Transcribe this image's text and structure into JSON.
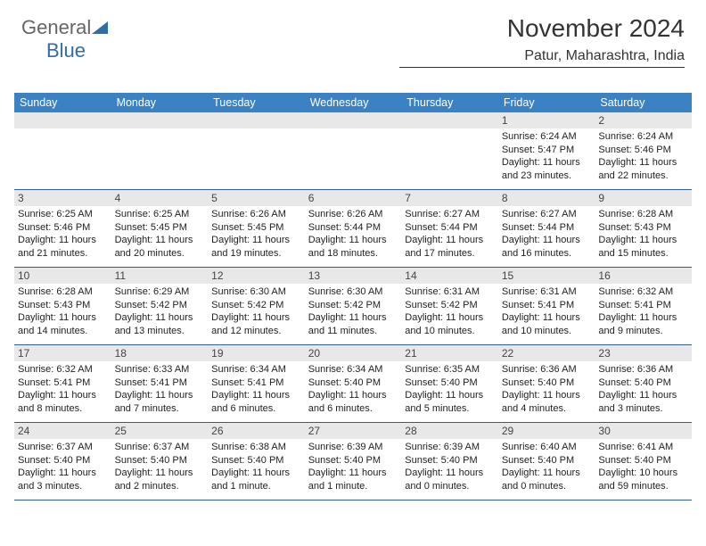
{
  "brand": {
    "part1": "General",
    "part2": "Blue"
  },
  "header": {
    "title": "November 2024",
    "location": "Patur, Maharashtra, India"
  },
  "colors": {
    "header_bg": "#3a82c4",
    "header_text": "#ffffff",
    "daynum_bg": "#e8e8e8",
    "week_border": "#2f5f8a",
    "text": "#222222",
    "logo_gray": "#666666",
    "logo_blue": "#2f6fa7"
  },
  "day_labels": [
    "Sunday",
    "Monday",
    "Tuesday",
    "Wednesday",
    "Thursday",
    "Friday",
    "Saturday"
  ],
  "weeks": [
    [
      {
        "n": "",
        "sr": "",
        "ss": "",
        "dl": ""
      },
      {
        "n": "",
        "sr": "",
        "ss": "",
        "dl": ""
      },
      {
        "n": "",
        "sr": "",
        "ss": "",
        "dl": ""
      },
      {
        "n": "",
        "sr": "",
        "ss": "",
        "dl": ""
      },
      {
        "n": "",
        "sr": "",
        "ss": "",
        "dl": ""
      },
      {
        "n": "1",
        "sr": "Sunrise: 6:24 AM",
        "ss": "Sunset: 5:47 PM",
        "dl": "Daylight: 11 hours and 23 minutes."
      },
      {
        "n": "2",
        "sr": "Sunrise: 6:24 AM",
        "ss": "Sunset: 5:46 PM",
        "dl": "Daylight: 11 hours and 22 minutes."
      }
    ],
    [
      {
        "n": "3",
        "sr": "Sunrise: 6:25 AM",
        "ss": "Sunset: 5:46 PM",
        "dl": "Daylight: 11 hours and 21 minutes."
      },
      {
        "n": "4",
        "sr": "Sunrise: 6:25 AM",
        "ss": "Sunset: 5:45 PM",
        "dl": "Daylight: 11 hours and 20 minutes."
      },
      {
        "n": "5",
        "sr": "Sunrise: 6:26 AM",
        "ss": "Sunset: 5:45 PM",
        "dl": "Daylight: 11 hours and 19 minutes."
      },
      {
        "n": "6",
        "sr": "Sunrise: 6:26 AM",
        "ss": "Sunset: 5:44 PM",
        "dl": "Daylight: 11 hours and 18 minutes."
      },
      {
        "n": "7",
        "sr": "Sunrise: 6:27 AM",
        "ss": "Sunset: 5:44 PM",
        "dl": "Daylight: 11 hours and 17 minutes."
      },
      {
        "n": "8",
        "sr": "Sunrise: 6:27 AM",
        "ss": "Sunset: 5:44 PM",
        "dl": "Daylight: 11 hours and 16 minutes."
      },
      {
        "n": "9",
        "sr": "Sunrise: 6:28 AM",
        "ss": "Sunset: 5:43 PM",
        "dl": "Daylight: 11 hours and 15 minutes."
      }
    ],
    [
      {
        "n": "10",
        "sr": "Sunrise: 6:28 AM",
        "ss": "Sunset: 5:43 PM",
        "dl": "Daylight: 11 hours and 14 minutes."
      },
      {
        "n": "11",
        "sr": "Sunrise: 6:29 AM",
        "ss": "Sunset: 5:42 PM",
        "dl": "Daylight: 11 hours and 13 minutes."
      },
      {
        "n": "12",
        "sr": "Sunrise: 6:30 AM",
        "ss": "Sunset: 5:42 PM",
        "dl": "Daylight: 11 hours and 12 minutes."
      },
      {
        "n": "13",
        "sr": "Sunrise: 6:30 AM",
        "ss": "Sunset: 5:42 PM",
        "dl": "Daylight: 11 hours and 11 minutes."
      },
      {
        "n": "14",
        "sr": "Sunrise: 6:31 AM",
        "ss": "Sunset: 5:42 PM",
        "dl": "Daylight: 11 hours and 10 minutes."
      },
      {
        "n": "15",
        "sr": "Sunrise: 6:31 AM",
        "ss": "Sunset: 5:41 PM",
        "dl": "Daylight: 11 hours and 10 minutes."
      },
      {
        "n": "16",
        "sr": "Sunrise: 6:32 AM",
        "ss": "Sunset: 5:41 PM",
        "dl": "Daylight: 11 hours and 9 minutes."
      }
    ],
    [
      {
        "n": "17",
        "sr": "Sunrise: 6:32 AM",
        "ss": "Sunset: 5:41 PM",
        "dl": "Daylight: 11 hours and 8 minutes."
      },
      {
        "n": "18",
        "sr": "Sunrise: 6:33 AM",
        "ss": "Sunset: 5:41 PM",
        "dl": "Daylight: 11 hours and 7 minutes."
      },
      {
        "n": "19",
        "sr": "Sunrise: 6:34 AM",
        "ss": "Sunset: 5:41 PM",
        "dl": "Daylight: 11 hours and 6 minutes."
      },
      {
        "n": "20",
        "sr": "Sunrise: 6:34 AM",
        "ss": "Sunset: 5:40 PM",
        "dl": "Daylight: 11 hours and 6 minutes."
      },
      {
        "n": "21",
        "sr": "Sunrise: 6:35 AM",
        "ss": "Sunset: 5:40 PM",
        "dl": "Daylight: 11 hours and 5 minutes."
      },
      {
        "n": "22",
        "sr": "Sunrise: 6:36 AM",
        "ss": "Sunset: 5:40 PM",
        "dl": "Daylight: 11 hours and 4 minutes."
      },
      {
        "n": "23",
        "sr": "Sunrise: 6:36 AM",
        "ss": "Sunset: 5:40 PM",
        "dl": "Daylight: 11 hours and 3 minutes."
      }
    ],
    [
      {
        "n": "24",
        "sr": "Sunrise: 6:37 AM",
        "ss": "Sunset: 5:40 PM",
        "dl": "Daylight: 11 hours and 3 minutes."
      },
      {
        "n": "25",
        "sr": "Sunrise: 6:37 AM",
        "ss": "Sunset: 5:40 PM",
        "dl": "Daylight: 11 hours and 2 minutes."
      },
      {
        "n": "26",
        "sr": "Sunrise: 6:38 AM",
        "ss": "Sunset: 5:40 PM",
        "dl": "Daylight: 11 hours and 1 minute."
      },
      {
        "n": "27",
        "sr": "Sunrise: 6:39 AM",
        "ss": "Sunset: 5:40 PM",
        "dl": "Daylight: 11 hours and 1 minute."
      },
      {
        "n": "28",
        "sr": "Sunrise: 6:39 AM",
        "ss": "Sunset: 5:40 PM",
        "dl": "Daylight: 11 hours and 0 minutes."
      },
      {
        "n": "29",
        "sr": "Sunrise: 6:40 AM",
        "ss": "Sunset: 5:40 PM",
        "dl": "Daylight: 11 hours and 0 minutes."
      },
      {
        "n": "30",
        "sr": "Sunrise: 6:41 AM",
        "ss": "Sunset: 5:40 PM",
        "dl": "Daylight: 10 hours and 59 minutes."
      }
    ]
  ]
}
